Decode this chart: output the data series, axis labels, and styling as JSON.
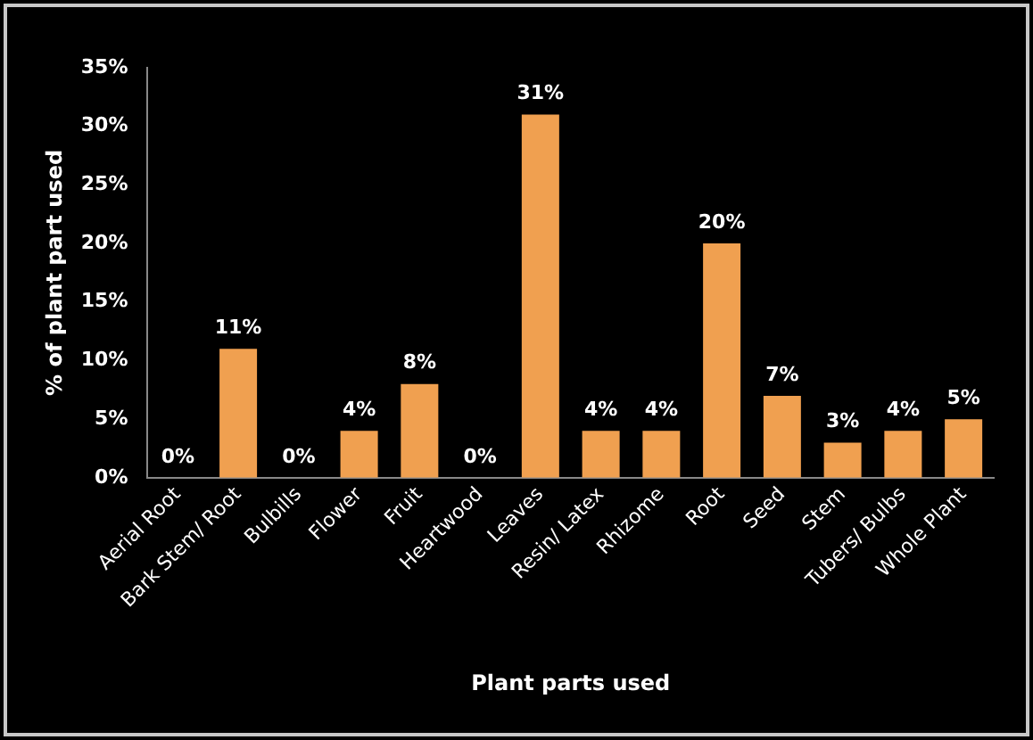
{
  "chart_data": {
    "type": "bar",
    "xlabel": "Plant parts used",
    "ylabel": "% of plant part used",
    "categories": [
      "Aerial Root",
      "Bark Stem/ Root",
      "Bulbills",
      "Flower",
      "Fruit",
      "Heartwood",
      "Leaves",
      "Resin/ Latex",
      "Rhizome",
      "Root",
      "Seed",
      "Stem",
      "Tubers/ Bulbs",
      "Whole Plant"
    ],
    "values": [
      0,
      11,
      0,
      4,
      8,
      0,
      31,
      4,
      4,
      20,
      7,
      3,
      4,
      5
    ],
    "value_labels": [
      "0%",
      "11%",
      "0%",
      "4%",
      "8%",
      "0%",
      "31%",
      "4%",
      "4%",
      "20%",
      "7%",
      "3%",
      "4%",
      "5%"
    ],
    "color": "#f0a050",
    "ylim": [
      0,
      35
    ],
    "yticks": [
      {
        "value": 0,
        "label": "0%"
      },
      {
        "value": 5,
        "label": "5%"
      },
      {
        "value": 10,
        "label": "10%"
      },
      {
        "value": 15,
        "label": "15%"
      },
      {
        "value": 20,
        "label": "20%"
      },
      {
        "value": 25,
        "label": "25%"
      },
      {
        "value": 30,
        "label": "30%"
      },
      {
        "value": 35,
        "label": "35%"
      }
    ],
    "grid": false,
    "legend": false
  }
}
